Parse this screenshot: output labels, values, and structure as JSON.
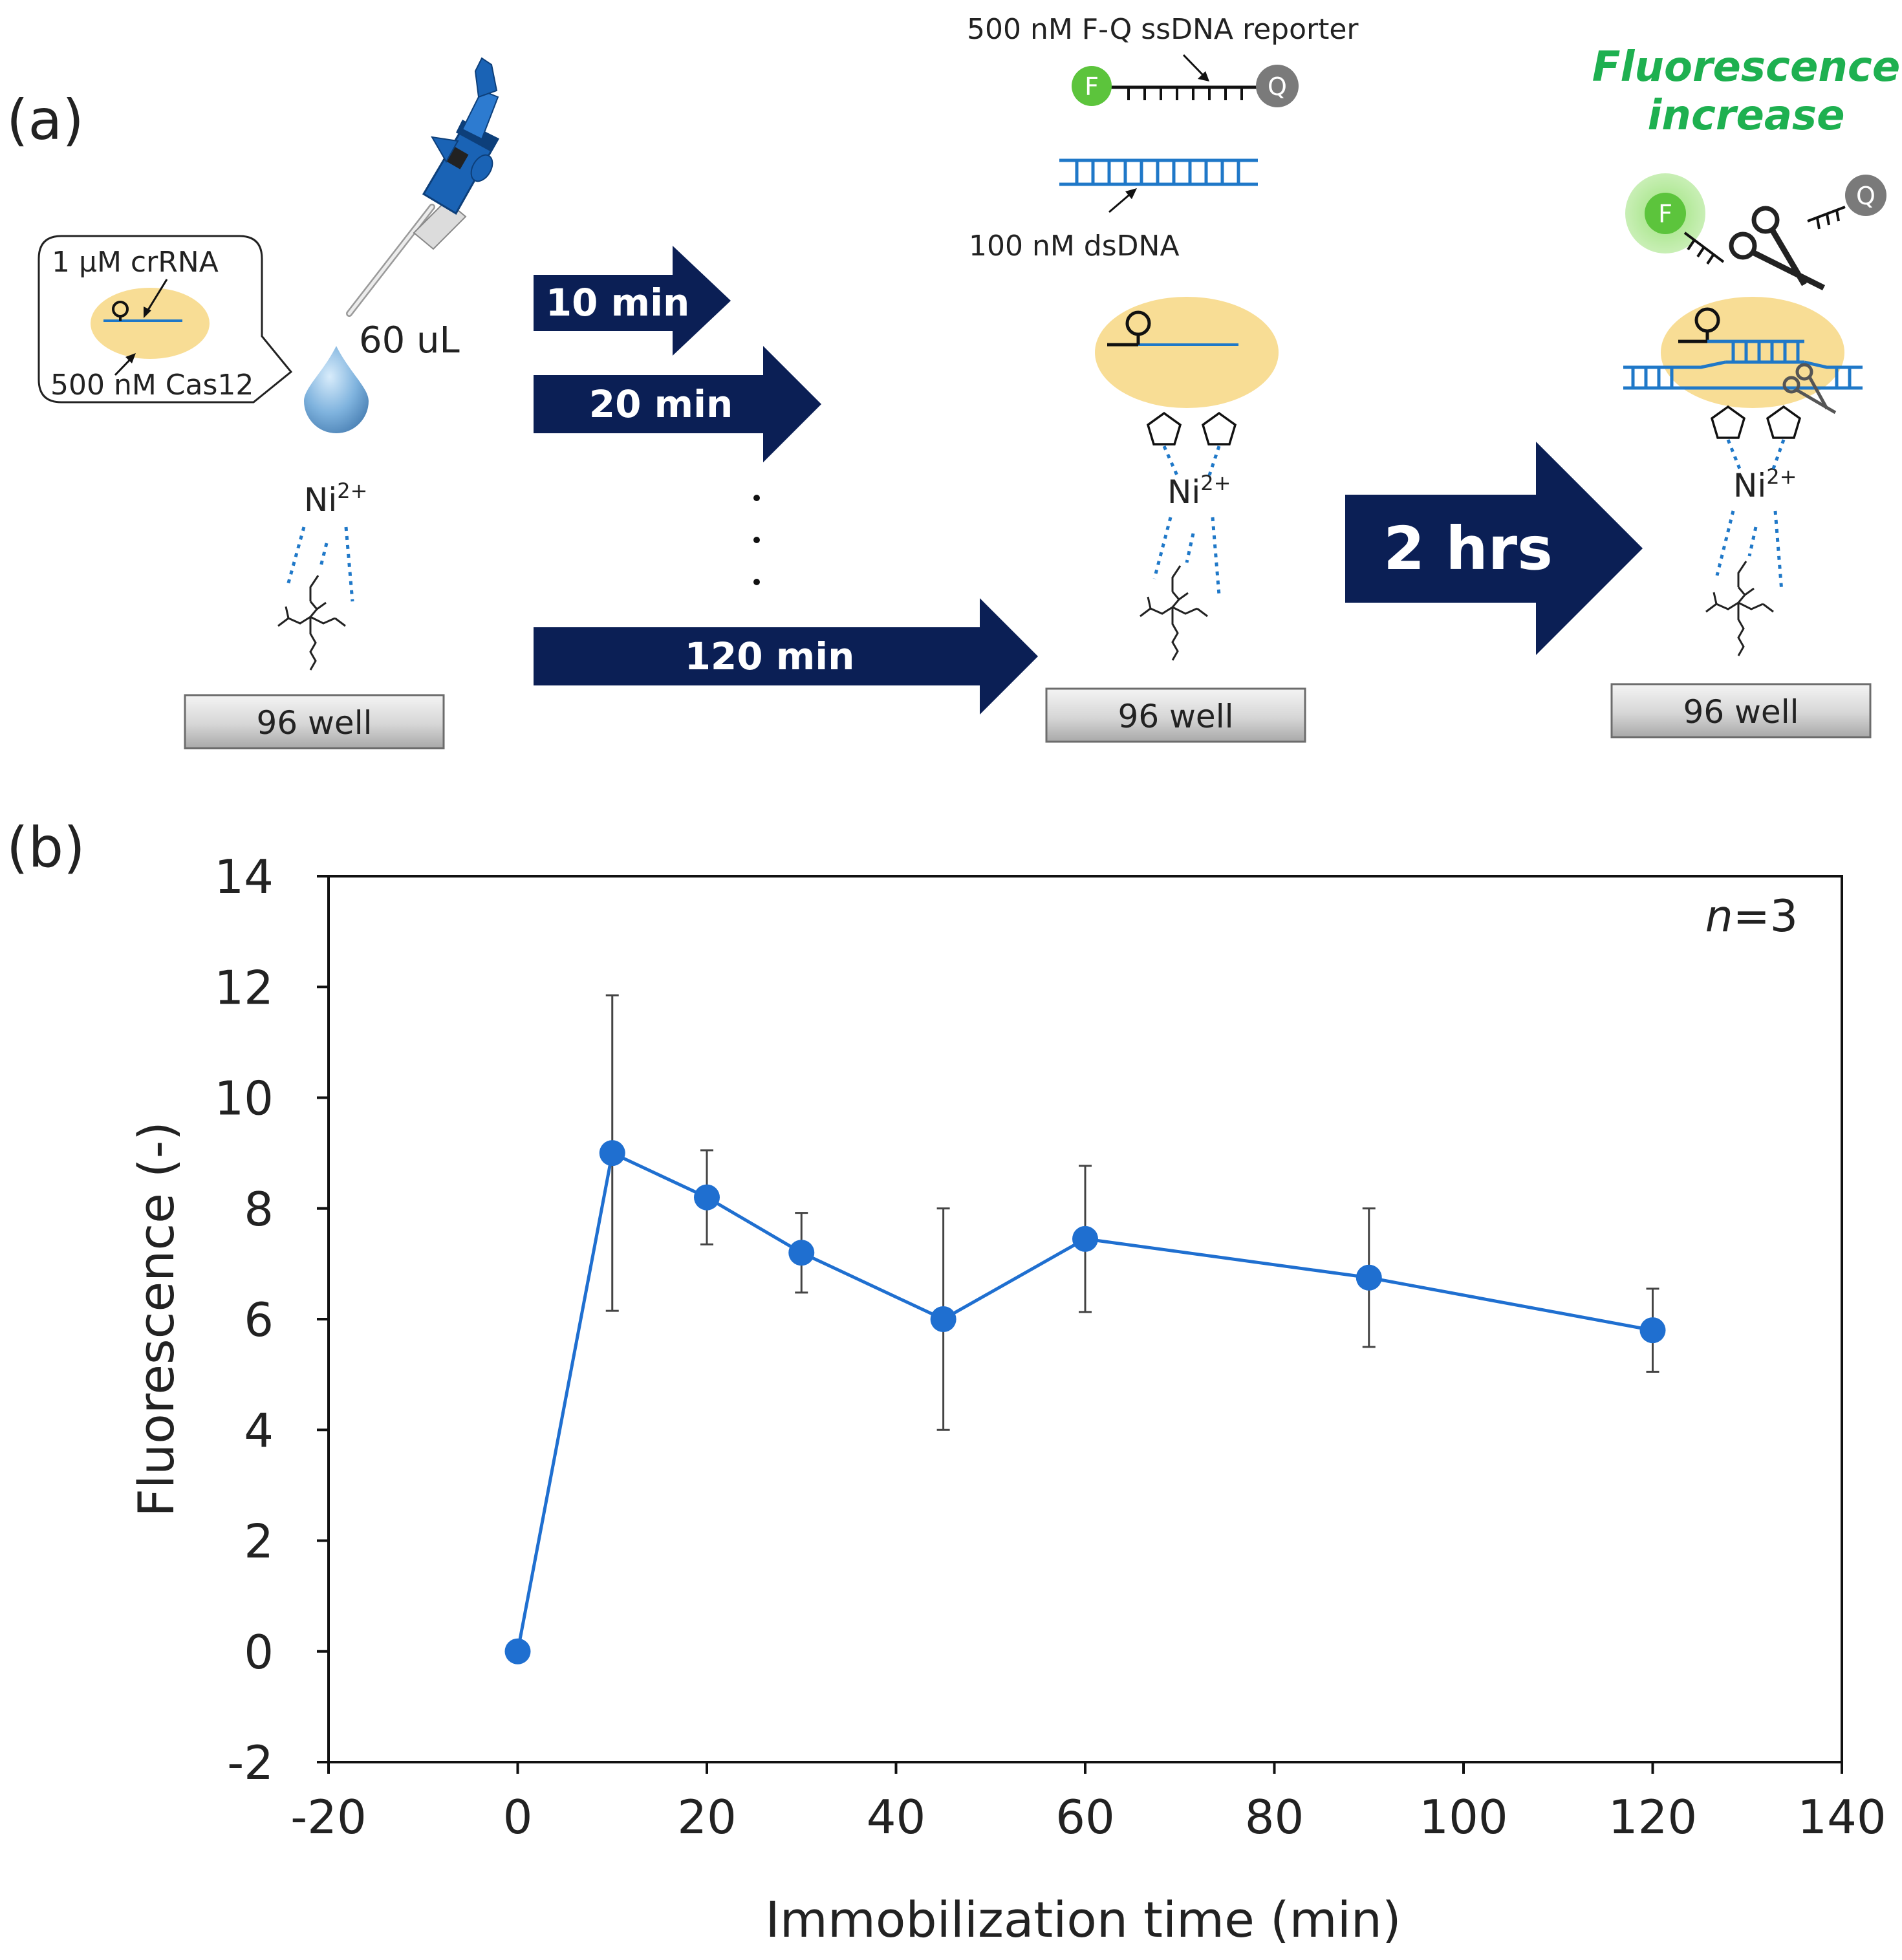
{
  "panel_a": {
    "label": "(a)",
    "callout": {
      "crrna": "1 µM crRNA",
      "cas": "500 nM Cas12"
    },
    "volume": "60 uL",
    "ion_charge": "2+",
    "ion": "Ni",
    "well": "96 well",
    "time_arrows": [
      "10 min",
      "20 min",
      "120 min"
    ],
    "reporter_label": "500 nM F-Q ssDNA reporter",
    "dsdna_label": "100 nM dsDNA",
    "fluor_letter": "F",
    "quencher_letter": "Q",
    "hrs_label": "2 hrs",
    "fluorescence_title": [
      "Fluorescence",
      "increase"
    ],
    "colors": {
      "navy": "#0b1f55",
      "dna_blue": "#1f78c8",
      "protein": "#f8dd95",
      "green": "#1eb050",
      "fluor": "#5cc43c",
      "quench": "#7a7a7a"
    }
  },
  "panel_b": {
    "label": "(b)",
    "annotation_n": "n",
    "annotation_val": "=3",
    "marker_color": "#1f6fd0"
  },
  "chart_data": {
    "type": "line",
    "title": "",
    "xlabel": "Immobilization time (min)",
    "ylabel": "Fluorescence (-)",
    "xlim": [
      -20,
      140
    ],
    "ylim": [
      -2,
      14
    ],
    "xticks": [
      -20,
      0,
      20,
      40,
      60,
      80,
      100,
      120,
      140
    ],
    "yticks": [
      -2,
      0,
      2,
      4,
      6,
      8,
      10,
      12,
      14
    ],
    "series": [
      {
        "name": "Fluorescence",
        "x": [
          0,
          10,
          20,
          30,
          45,
          60,
          90,
          120
        ],
        "y": [
          0,
          9.0,
          8.2,
          7.2,
          6.0,
          7.45,
          6.75,
          5.8
        ],
        "err": [
          0,
          2.85,
          0.85,
          0.72,
          2.0,
          1.32,
          1.25,
          0.75
        ]
      }
    ]
  }
}
